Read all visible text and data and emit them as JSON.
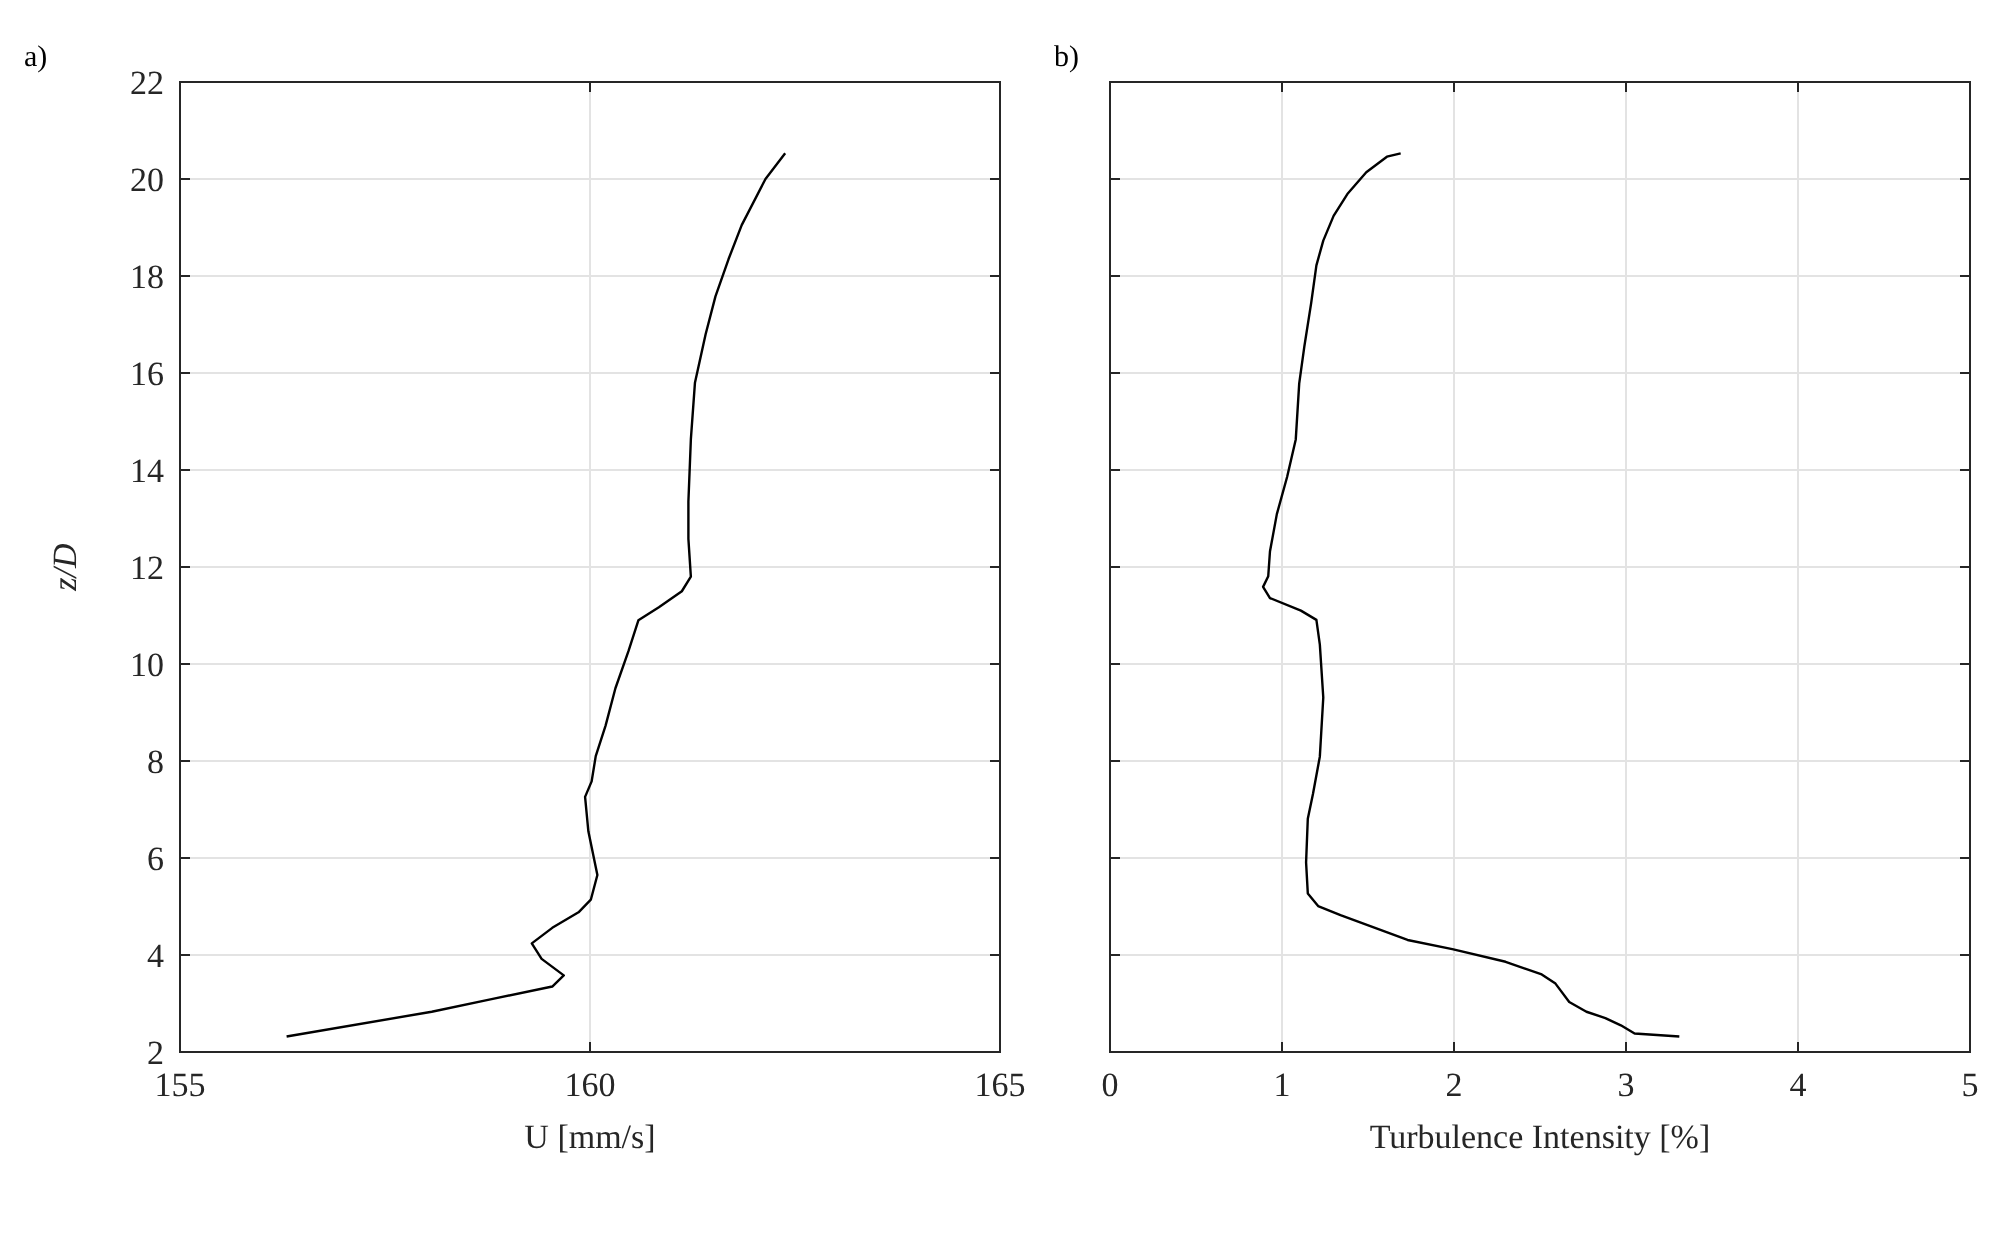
{
  "chart_data": [
    {
      "type": "line",
      "annotations": [
        "a)"
      ],
      "xlabel": "U [mm/s]",
      "ylabel": "z/D",
      "xlim": [
        155,
        165
      ],
      "xticks": [
        155,
        160,
        165
      ],
      "ylim": [
        2,
        22
      ],
      "yticks": [
        2,
        4,
        6,
        8,
        10,
        12,
        14,
        16,
        18,
        20,
        22
      ],
      "grid": true,
      "marker": "none",
      "line_style": "solid",
      "series": [
        {
          "color": "#000000",
          "x": [
            156.3,
            158.07,
            158.8,
            159.54,
            159.68,
            159.41,
            159.29,
            159.54,
            159.86,
            160.01,
            160.09,
            159.98,
            159.94,
            160.02,
            160.07,
            160.19,
            160.31,
            160.47,
            160.59,
            160.84,
            161.12,
            161.23,
            161.2,
            161.2,
            161.23,
            161.28,
            161.41,
            161.53,
            161.69,
            161.85,
            162.14,
            162.38
          ],
          "values": [
            2.32,
            2.83,
            3.09,
            3.35,
            3.58,
            3.92,
            4.24,
            4.56,
            4.88,
            5.14,
            5.65,
            6.55,
            7.26,
            7.58,
            8.1,
            8.73,
            9.5,
            10.27,
            10.9,
            11.17,
            11.5,
            11.8,
            12.58,
            13.35,
            14.63,
            15.8,
            16.8,
            17.58,
            18.35,
            19.05,
            20.0,
            20.53
          ]
        }
      ]
    },
    {
      "type": "line",
      "annotations": [
        "b)"
      ],
      "xlabel": "Turbulence Intensity [%]",
      "xlim": [
        0,
        5
      ],
      "xticks": [
        0,
        1,
        2,
        3,
        4,
        5
      ],
      "ylim": [
        2,
        22
      ],
      "yticks": [
        2,
        4,
        6,
        8,
        10,
        12,
        14,
        16,
        18,
        20,
        22
      ],
      "tick_labels": "x",
      "grid": true,
      "marker": "none",
      "line_style": "solid",
      "series": [
        {
          "color": "#000000",
          "x": [
            3.31,
            3.05,
            2.97,
            2.88,
            2.77,
            2.67,
            2.59,
            2.51,
            2.3,
            1.99,
            1.73,
            1.34,
            1.21,
            1.15,
            1.14,
            1.15,
            1.18,
            1.22,
            1.24,
            1.22,
            1.2,
            1.11,
            0.93,
            0.89,
            0.92,
            0.93,
            0.97,
            1.03,
            1.08,
            1.1,
            1.13,
            1.17,
            1.2,
            1.24,
            1.3,
            1.38,
            1.49,
            1.61,
            1.69
          ],
          "values": [
            2.32,
            2.38,
            2.55,
            2.7,
            2.83,
            3.03,
            3.41,
            3.6,
            3.86,
            4.12,
            4.31,
            4.82,
            5.01,
            5.27,
            5.91,
            6.81,
            7.32,
            8.09,
            9.31,
            10.4,
            10.91,
            11.1,
            11.36,
            11.59,
            11.81,
            12.32,
            13.09,
            13.86,
            14.63,
            15.78,
            16.55,
            17.45,
            18.22,
            18.73,
            19.24,
            19.69,
            20.14,
            20.46,
            20.53
          ]
        }
      ]
    }
  ]
}
